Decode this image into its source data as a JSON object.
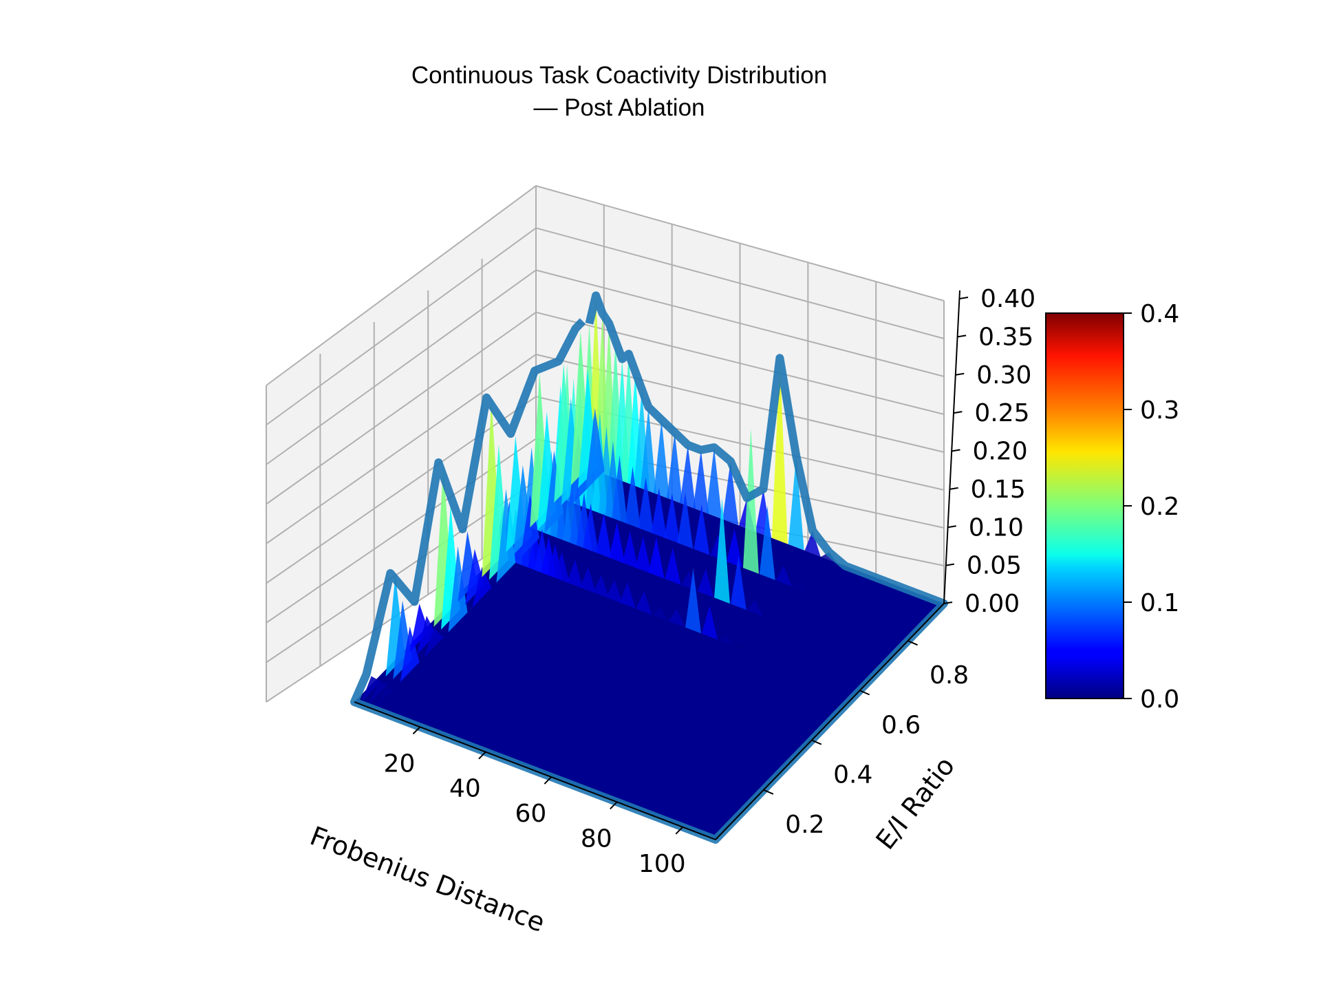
{
  "chart_data": {
    "type": "surface3d",
    "title_line1": "Continuous Task Coactivity Distribution",
    "title_line2": "— Post Ablation",
    "xlabel": "Frobenius Distance",
    "ylabel": "E/I Ratio",
    "zlabel": "",
    "x_ticks": [
      "20",
      "40",
      "60",
      "80",
      "100"
    ],
    "y_ticks": [
      "0.2",
      "0.4",
      "0.6",
      "0.8"
    ],
    "z_ticks": [
      "0.00",
      "0.05",
      "0.10",
      "0.15",
      "0.20",
      "0.25",
      "0.30",
      "0.35",
      "0.40"
    ],
    "colorbar_ticks": [
      "0.0",
      "0.1",
      "0.2",
      "0.3",
      "0.4"
    ],
    "colormap": "jet",
    "zlim": [
      0,
      0.4
    ],
    "colorbar_range": [
      0,
      0.4
    ],
    "xlim": [
      0,
      110
    ],
    "ylim": [
      0,
      0.95
    ],
    "back_edge_profile": {
      "x": [
        2,
        4,
        6,
        8,
        10,
        12,
        14,
        16,
        18,
        20,
        24,
        28,
        32,
        36,
        40,
        45,
        50,
        55,
        60,
        65,
        70,
        75,
        80,
        85,
        90,
        95,
        100,
        105
      ],
      "z": [
        0.19,
        0.23,
        0.21,
        0.2,
        0.18,
        0.16,
        0.17,
        0.15,
        0.13,
        0.11,
        0.1,
        0.09,
        0.08,
        0.08,
        0.09,
        0.08,
        0.04,
        0.06,
        0.24,
        0.12,
        0.03,
        0.01,
        0.0,
        0.0,
        0.0,
        0.0,
        0.0,
        0.0
      ]
    },
    "left_edge_profile": {
      "y": [
        0.05,
        0.15,
        0.25,
        0.35,
        0.45,
        0.55,
        0.65,
        0.75,
        0.85,
        0.92
      ],
      "z": [
        0.02,
        0.12,
        0.05,
        0.2,
        0.08,
        0.22,
        0.14,
        0.19,
        0.17,
        0.19
      ]
    },
    "grid": true,
    "colors": {
      "edge_outline": "#1f77b4",
      "surface_base": "#00008f",
      "pane": "#f2f2f2",
      "grid": "#b0b0b0"
    }
  }
}
